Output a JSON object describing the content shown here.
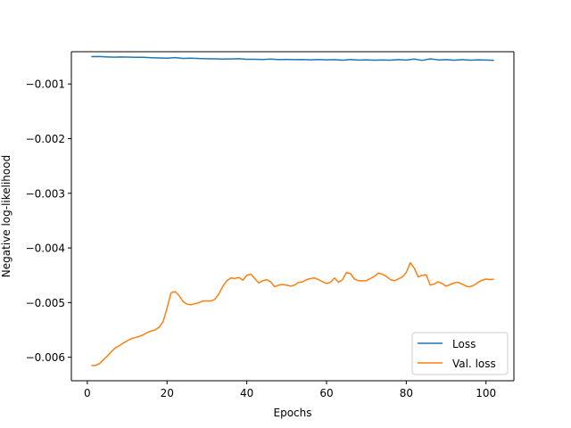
{
  "chart_data": {
    "type": "line",
    "title": "",
    "xlabel": "Epochs",
    "ylabel": "Negative log-likelihood",
    "xlim": [
      -4,
      107
    ],
    "ylim": [
      -0.00643,
      -0.00041
    ],
    "xticks": [
      0,
      20,
      40,
      60,
      80,
      100
    ],
    "yticks": [
      -0.001,
      -0.002,
      -0.003,
      -0.004,
      -0.005,
      -0.006
    ],
    "ytick_labels": [
      "−0.001",
      "−0.002",
      "−0.003",
      "−0.004",
      "−0.005",
      "−0.006"
    ],
    "grid": false,
    "legend_position": "lower-right",
    "series": [
      {
        "name": "Loss",
        "color": "#1f77b4",
        "points": [
          [
            1,
            -0.0005
          ],
          [
            3,
            -0.000498
          ],
          [
            5,
            -0.000505
          ],
          [
            7,
            -0.00051
          ],
          [
            8,
            -0.000505
          ],
          [
            10,
            -0.000508
          ],
          [
            12,
            -0.000512
          ],
          [
            14,
            -0.000513
          ],
          [
            16,
            -0.00052
          ],
          [
            18,
            -0.000525
          ],
          [
            20,
            -0.000528
          ],
          [
            22,
            -0.000518
          ],
          [
            24,
            -0.000532
          ],
          [
            26,
            -0.000528
          ],
          [
            28,
            -0.000535
          ],
          [
            30,
            -0.000538
          ],
          [
            32,
            -0.00054
          ],
          [
            34,
            -0.000545
          ],
          [
            36,
            -0.000542
          ],
          [
            38,
            -0.000538
          ],
          [
            40,
            -0.000548
          ],
          [
            42,
            -0.000548
          ],
          [
            44,
            -0.000552
          ],
          [
            46,
            -0.000545
          ],
          [
            48,
            -0.000555
          ],
          [
            50,
            -0.00055
          ],
          [
            52,
            -0.000555
          ],
          [
            54,
            -0.000552
          ],
          [
            56,
            -0.000558
          ],
          [
            58,
            -0.000552
          ],
          [
            60,
            -0.000558
          ],
          [
            62,
            -0.000555
          ],
          [
            64,
            -0.000565
          ],
          [
            66,
            -0.000552
          ],
          [
            68,
            -0.000562
          ],
          [
            70,
            -0.000558
          ],
          [
            72,
            -0.000565
          ],
          [
            74,
            -0.00056
          ],
          [
            76,
            -0.000565
          ],
          [
            78,
            -0.000555
          ],
          [
            80,
            -0.000562
          ],
          [
            82,
            -0.000545
          ],
          [
            84,
            -0.000568
          ],
          [
            86,
            -0.00054
          ],
          [
            88,
            -0.00056
          ],
          [
            90,
            -0.000555
          ],
          [
            92,
            -0.000565
          ],
          [
            94,
            -0.000555
          ],
          [
            96,
            -0.000565
          ],
          [
            98,
            -0.000558
          ],
          [
            100,
            -0.000562
          ],
          [
            102,
            -0.000568
          ]
        ]
      },
      {
        "name": "Val. loss",
        "color": "#ff7f0e",
        "points": [
          [
            1,
            -0.00615
          ],
          [
            2,
            -0.00615
          ],
          [
            3,
            -0.00612
          ],
          [
            4,
            -0.00605
          ],
          [
            5,
            -0.00598
          ],
          [
            6,
            -0.0059
          ],
          [
            7,
            -0.00583
          ],
          [
            8,
            -0.00579
          ],
          [
            9,
            -0.00574
          ],
          [
            10,
            -0.0057
          ],
          [
            11,
            -0.00566
          ],
          [
            12,
            -0.00564
          ],
          [
            13,
            -0.00562
          ],
          [
            14,
            -0.00559
          ],
          [
            15,
            -0.00555
          ],
          [
            16,
            -0.00552
          ],
          [
            17,
            -0.0055
          ],
          [
            18,
            -0.00545
          ],
          [
            19,
            -0.00535
          ],
          [
            20,
            -0.0051
          ],
          [
            21,
            -0.00482
          ],
          [
            22,
            -0.0048
          ],
          [
            23,
            -0.00487
          ],
          [
            24,
            -0.00498
          ],
          [
            25,
            -0.00503
          ],
          [
            26,
            -0.00504
          ],
          [
            27,
            -0.00502
          ],
          [
            28,
            -0.005
          ],
          [
            29,
            -0.00497
          ],
          [
            30,
            -0.00497
          ],
          [
            31,
            -0.00497
          ],
          [
            32,
            -0.00494
          ],
          [
            33,
            -0.00484
          ],
          [
            34,
            -0.0047
          ],
          [
            35,
            -0.0046
          ],
          [
            36,
            -0.00455
          ],
          [
            37,
            -0.00456
          ],
          [
            38,
            -0.00454
          ],
          [
            39,
            -0.00459
          ],
          [
            40,
            -0.0045
          ],
          [
            41,
            -0.00448
          ],
          [
            42,
            -0.00456
          ],
          [
            43,
            -0.00464
          ],
          [
            44,
            -0.0046
          ],
          [
            45,
            -0.00458
          ],
          [
            46,
            -0.00462
          ],
          [
            47,
            -0.00471
          ],
          [
            48,
            -0.00468
          ],
          [
            49,
            -0.00467
          ],
          [
            50,
            -0.00468
          ],
          [
            51,
            -0.0047
          ],
          [
            52,
            -0.00468
          ],
          [
            53,
            -0.00463
          ],
          [
            54,
            -0.00462
          ],
          [
            55,
            -0.00458
          ],
          [
            56,
            -0.00456
          ],
          [
            57,
            -0.00455
          ],
          [
            58,
            -0.00458
          ],
          [
            59,
            -0.00462
          ],
          [
            60,
            -0.00465
          ],
          [
            61,
            -0.00463
          ],
          [
            62,
            -0.00455
          ],
          [
            63,
            -0.00463
          ],
          [
            64,
            -0.00458
          ],
          [
            65,
            -0.00445
          ],
          [
            66,
            -0.00447
          ],
          [
            67,
            -0.00457
          ],
          [
            68,
            -0.0046
          ],
          [
            69,
            -0.0046
          ],
          [
            70,
            -0.0046
          ],
          [
            71,
            -0.00456
          ],
          [
            72,
            -0.00452
          ],
          [
            73,
            -0.00446
          ],
          [
            74,
            -0.00448
          ],
          [
            75,
            -0.00452
          ],
          [
            76,
            -0.00458
          ],
          [
            77,
            -0.0046
          ],
          [
            78,
            -0.00457
          ],
          [
            79,
            -0.00453
          ],
          [
            80,
            -0.00445
          ],
          [
            81,
            -0.00427
          ],
          [
            82,
            -0.00437
          ],
          [
            83,
            -0.00453
          ],
          [
            84,
            -0.0045
          ],
          [
            85,
            -0.00449
          ],
          [
            86,
            -0.00468
          ],
          [
            87,
            -0.00466
          ],
          [
            88,
            -0.00462
          ],
          [
            89,
            -0.00465
          ],
          [
            90,
            -0.0047
          ],
          [
            91,
            -0.00467
          ],
          [
            92,
            -0.00464
          ],
          [
            93,
            -0.00463
          ],
          [
            94,
            -0.00466
          ],
          [
            95,
            -0.0047
          ],
          [
            96,
            -0.00471
          ],
          [
            97,
            -0.00468
          ],
          [
            98,
            -0.00463
          ],
          [
            99,
            -0.00459
          ],
          [
            100,
            -0.00457
          ],
          [
            101,
            -0.00458
          ],
          [
            102,
            -0.00457
          ]
        ]
      }
    ]
  }
}
